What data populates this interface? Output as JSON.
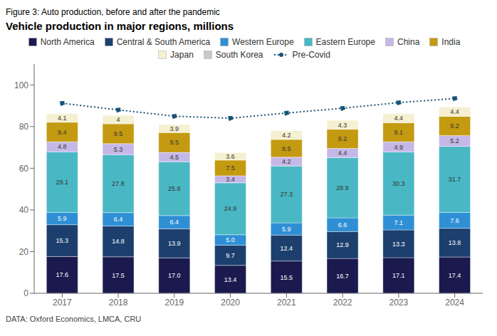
{
  "chart_data": {
    "type": "bar",
    "stacked": true,
    "title": "Vehicle production in major regions, millions",
    "subtitle": "Figure 3: Auto production, before and after the pandemic",
    "annotations": [
      "DATA: Oxford Economics, LMCA, CRU"
    ],
    "categories": [
      "2017",
      "2018",
      "2019",
      "2020",
      "2021",
      "2022",
      "2023",
      "2024"
    ],
    "series": [
      {
        "name": "North America",
        "color": "#1a1a4e",
        "values": [
          17.6,
          17.5,
          17.0,
          13.4,
          15.5,
          16.7,
          17.1,
          17.4
        ],
        "value_labels": [
          "17.6",
          "17.5",
          "17.0",
          "13.4",
          "15.5",
          "16.7",
          "17.1",
          "17.4"
        ]
      },
      {
        "name": "Central & South America",
        "color": "#1c3f6e",
        "values": [
          15.3,
          14.8,
          13.9,
          9.7,
          12.4,
          12.9,
          13.3,
          13.8
        ]
      },
      {
        "name": "Western Europe",
        "color": "#2f8fd5",
        "values": [
          5.9,
          6.4,
          6.4,
          5.0,
          5.9,
          6.6,
          7.1,
          7.6
        ],
        "value_labels": [
          "5.9",
          "6.4",
          "6.4",
          "5.0",
          "5.9",
          "6.6",
          "7.1",
          "7.6"
        ]
      },
      {
        "name": "Eastern Europe",
        "color": "#4ab8c4",
        "values": [
          29.1,
          27.8,
          25.8,
          24.9,
          27.3,
          28.9,
          30.3,
          31.7
        ]
      },
      {
        "name": "China",
        "color": "#c5b8e8",
        "values": [
          4.8,
          5.3,
          4.5,
          3.4,
          4.2,
          4.4,
          4.9,
          5.2
        ]
      },
      {
        "name": "India",
        "color": "#c49a11",
        "values": [
          9.4,
          9.5,
          9.5,
          7.5,
          8.5,
          9.2,
          9.1,
          9.2
        ]
      },
      {
        "name": "Japan",
        "color": "#f5f0d0",
        "values": [
          4.1,
          4.0,
          3.9,
          3.6,
          4.2,
          4.3,
          4.4,
          4.4
        ]
      },
      {
        "name": "South Korea",
        "color": "#c8c8c8",
        "values": [
          0.0,
          0.0,
          0.0,
          0.0,
          0.0,
          0.0,
          0.0,
          0.0
        ]
      },
      {
        "name": "Pre-Covid",
        "type": "line",
        "color": "#1a5276",
        "line_style": "dotted",
        "marker": "circle",
        "values": [
          91.2,
          88.0,
          85.0,
          84.0,
          86.5,
          88.8,
          91.5,
          93.5
        ]
      }
    ],
    "ylim": [
      0,
      110
    ],
    "yticks": [
      0,
      20,
      40,
      60,
      80,
      100
    ],
    "grid": false,
    "legend": "top",
    "data_labels": true
  }
}
